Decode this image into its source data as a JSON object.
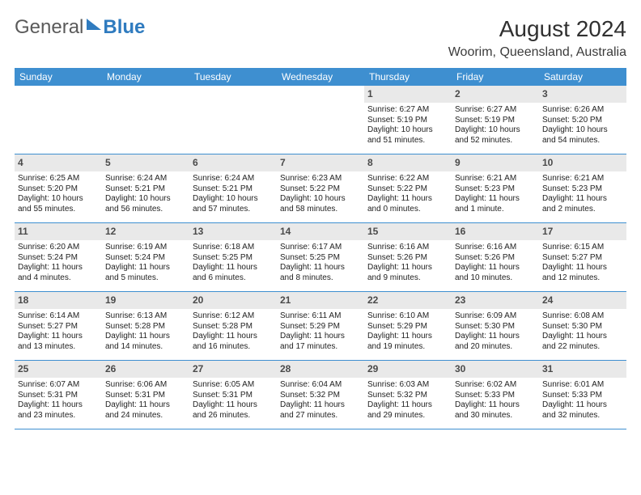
{
  "brand": {
    "word1": "General",
    "word2": "Blue"
  },
  "header": {
    "title": "August 2024",
    "location": "Woorim, Queensland, Australia"
  },
  "colors": {
    "header_bg": "#3e8fd0",
    "header_text": "#ffffff",
    "numrow_bg": "#e9e9e9",
    "row_divider": "#3e8fd0",
    "brand_gray": "#5a5a5a",
    "brand_blue": "#2f7bbf"
  },
  "weekdays": [
    "Sunday",
    "Monday",
    "Tuesday",
    "Wednesday",
    "Thursday",
    "Friday",
    "Saturday"
  ],
  "weeks": [
    {
      "nums": [
        "",
        "",
        "",
        "",
        "1",
        "2",
        "3"
      ],
      "cells": [
        null,
        null,
        null,
        null,
        {
          "sunrise": "Sunrise: 6:27 AM",
          "sunset": "Sunset: 5:19 PM",
          "day1": "Daylight: 10 hours",
          "day2": "and 51 minutes."
        },
        {
          "sunrise": "Sunrise: 6:27 AM",
          "sunset": "Sunset: 5:19 PM",
          "day1": "Daylight: 10 hours",
          "day2": "and 52 minutes."
        },
        {
          "sunrise": "Sunrise: 6:26 AM",
          "sunset": "Sunset: 5:20 PM",
          "day1": "Daylight: 10 hours",
          "day2": "and 54 minutes."
        }
      ]
    },
    {
      "nums": [
        "4",
        "5",
        "6",
        "7",
        "8",
        "9",
        "10"
      ],
      "cells": [
        {
          "sunrise": "Sunrise: 6:25 AM",
          "sunset": "Sunset: 5:20 PM",
          "day1": "Daylight: 10 hours",
          "day2": "and 55 minutes."
        },
        {
          "sunrise": "Sunrise: 6:24 AM",
          "sunset": "Sunset: 5:21 PM",
          "day1": "Daylight: 10 hours",
          "day2": "and 56 minutes."
        },
        {
          "sunrise": "Sunrise: 6:24 AM",
          "sunset": "Sunset: 5:21 PM",
          "day1": "Daylight: 10 hours",
          "day2": "and 57 minutes."
        },
        {
          "sunrise": "Sunrise: 6:23 AM",
          "sunset": "Sunset: 5:22 PM",
          "day1": "Daylight: 10 hours",
          "day2": "and 58 minutes."
        },
        {
          "sunrise": "Sunrise: 6:22 AM",
          "sunset": "Sunset: 5:22 PM",
          "day1": "Daylight: 11 hours",
          "day2": "and 0 minutes."
        },
        {
          "sunrise": "Sunrise: 6:21 AM",
          "sunset": "Sunset: 5:23 PM",
          "day1": "Daylight: 11 hours",
          "day2": "and 1 minute."
        },
        {
          "sunrise": "Sunrise: 6:21 AM",
          "sunset": "Sunset: 5:23 PM",
          "day1": "Daylight: 11 hours",
          "day2": "and 2 minutes."
        }
      ]
    },
    {
      "nums": [
        "11",
        "12",
        "13",
        "14",
        "15",
        "16",
        "17"
      ],
      "cells": [
        {
          "sunrise": "Sunrise: 6:20 AM",
          "sunset": "Sunset: 5:24 PM",
          "day1": "Daylight: 11 hours",
          "day2": "and 4 minutes."
        },
        {
          "sunrise": "Sunrise: 6:19 AM",
          "sunset": "Sunset: 5:24 PM",
          "day1": "Daylight: 11 hours",
          "day2": "and 5 minutes."
        },
        {
          "sunrise": "Sunrise: 6:18 AM",
          "sunset": "Sunset: 5:25 PM",
          "day1": "Daylight: 11 hours",
          "day2": "and 6 minutes."
        },
        {
          "sunrise": "Sunrise: 6:17 AM",
          "sunset": "Sunset: 5:25 PM",
          "day1": "Daylight: 11 hours",
          "day2": "and 8 minutes."
        },
        {
          "sunrise": "Sunrise: 6:16 AM",
          "sunset": "Sunset: 5:26 PM",
          "day1": "Daylight: 11 hours",
          "day2": "and 9 minutes."
        },
        {
          "sunrise": "Sunrise: 6:16 AM",
          "sunset": "Sunset: 5:26 PM",
          "day1": "Daylight: 11 hours",
          "day2": "and 10 minutes."
        },
        {
          "sunrise": "Sunrise: 6:15 AM",
          "sunset": "Sunset: 5:27 PM",
          "day1": "Daylight: 11 hours",
          "day2": "and 12 minutes."
        }
      ]
    },
    {
      "nums": [
        "18",
        "19",
        "20",
        "21",
        "22",
        "23",
        "24"
      ],
      "cells": [
        {
          "sunrise": "Sunrise: 6:14 AM",
          "sunset": "Sunset: 5:27 PM",
          "day1": "Daylight: 11 hours",
          "day2": "and 13 minutes."
        },
        {
          "sunrise": "Sunrise: 6:13 AM",
          "sunset": "Sunset: 5:28 PM",
          "day1": "Daylight: 11 hours",
          "day2": "and 14 minutes."
        },
        {
          "sunrise": "Sunrise: 6:12 AM",
          "sunset": "Sunset: 5:28 PM",
          "day1": "Daylight: 11 hours",
          "day2": "and 16 minutes."
        },
        {
          "sunrise": "Sunrise: 6:11 AM",
          "sunset": "Sunset: 5:29 PM",
          "day1": "Daylight: 11 hours",
          "day2": "and 17 minutes."
        },
        {
          "sunrise": "Sunrise: 6:10 AM",
          "sunset": "Sunset: 5:29 PM",
          "day1": "Daylight: 11 hours",
          "day2": "and 19 minutes."
        },
        {
          "sunrise": "Sunrise: 6:09 AM",
          "sunset": "Sunset: 5:30 PM",
          "day1": "Daylight: 11 hours",
          "day2": "and 20 minutes."
        },
        {
          "sunrise": "Sunrise: 6:08 AM",
          "sunset": "Sunset: 5:30 PM",
          "day1": "Daylight: 11 hours",
          "day2": "and 22 minutes."
        }
      ]
    },
    {
      "nums": [
        "25",
        "26",
        "27",
        "28",
        "29",
        "30",
        "31"
      ],
      "cells": [
        {
          "sunrise": "Sunrise: 6:07 AM",
          "sunset": "Sunset: 5:31 PM",
          "day1": "Daylight: 11 hours",
          "day2": "and 23 minutes."
        },
        {
          "sunrise": "Sunrise: 6:06 AM",
          "sunset": "Sunset: 5:31 PM",
          "day1": "Daylight: 11 hours",
          "day2": "and 24 minutes."
        },
        {
          "sunrise": "Sunrise: 6:05 AM",
          "sunset": "Sunset: 5:31 PM",
          "day1": "Daylight: 11 hours",
          "day2": "and 26 minutes."
        },
        {
          "sunrise": "Sunrise: 6:04 AM",
          "sunset": "Sunset: 5:32 PM",
          "day1": "Daylight: 11 hours",
          "day2": "and 27 minutes."
        },
        {
          "sunrise": "Sunrise: 6:03 AM",
          "sunset": "Sunset: 5:32 PM",
          "day1": "Daylight: 11 hours",
          "day2": "and 29 minutes."
        },
        {
          "sunrise": "Sunrise: 6:02 AM",
          "sunset": "Sunset: 5:33 PM",
          "day1": "Daylight: 11 hours",
          "day2": "and 30 minutes."
        },
        {
          "sunrise": "Sunrise: 6:01 AM",
          "sunset": "Sunset: 5:33 PM",
          "day1": "Daylight: 11 hours",
          "day2": "and 32 minutes."
        }
      ]
    }
  ]
}
